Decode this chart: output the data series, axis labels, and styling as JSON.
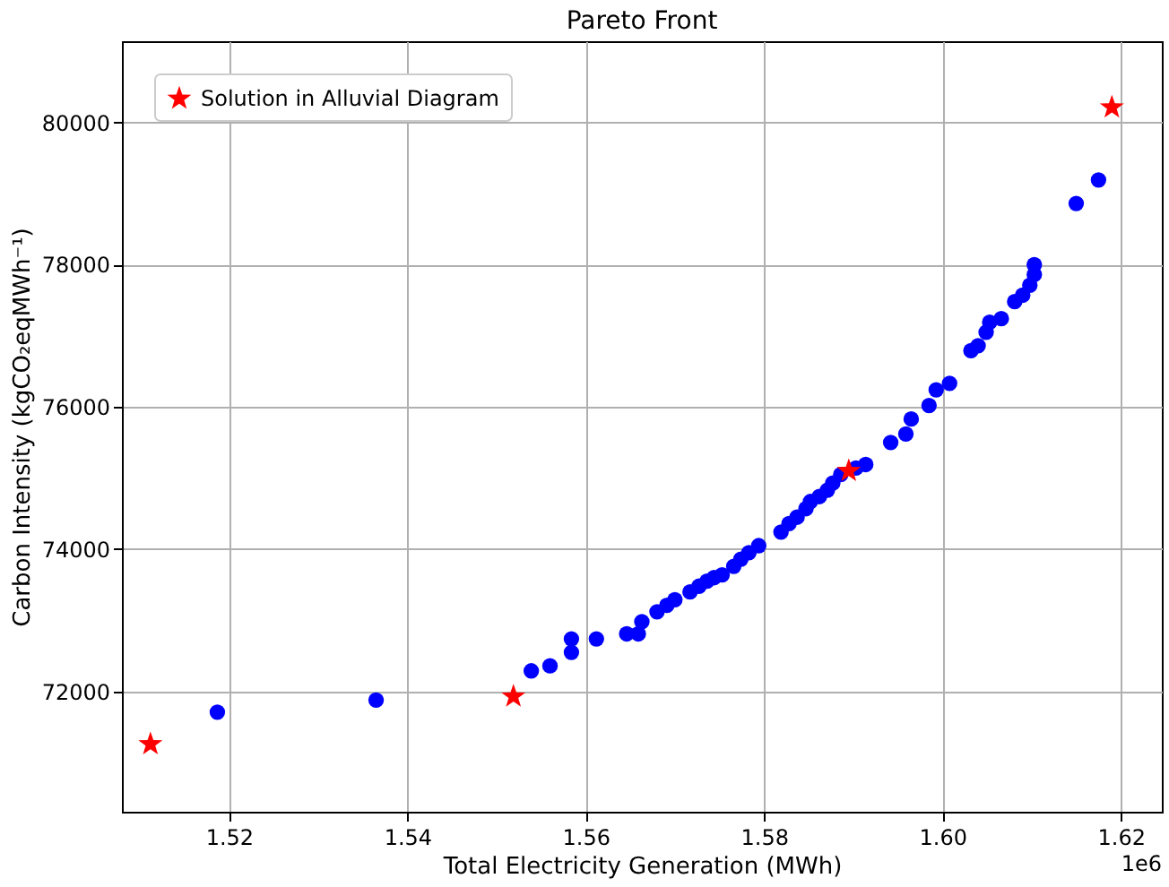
{
  "chart_data": {
    "type": "scatter",
    "title": "Pareto Front",
    "xlabel": "Total Electricity Generation (MWh)",
    "ylabel": "Carbon Intensity (kgCO₂eqMWh⁻¹)",
    "xlim": [
      1.508,
      1.6246
    ],
    "ylim": [
      70310,
      81140
    ],
    "xticks": [
      1.52,
      1.54,
      1.56,
      1.58,
      {
        "value": 1.6,
        "label": "1.60"
      },
      1.62
    ],
    "yticks": [
      72000,
      74000,
      76000,
      78000,
      80000
    ],
    "grid": true,
    "legend": "top left",
    "annotations": [
      "1e6"
    ],
    "series": [
      {
        "color": "#0000ff",
        "marker": "circle",
        "x": [
          1.5187,
          1.5365,
          1.5539,
          1.556,
          1.5584,
          1.5584,
          1.5612,
          1.5646,
          1.5659,
          1.5663,
          1.568,
          1.5691,
          1.57,
          1.5717,
          1.5727,
          1.5736,
          1.5744,
          1.5753,
          1.5766,
          1.5774,
          1.5783,
          1.5794,
          1.5819,
          1.5828,
          1.5837,
          1.5847,
          1.5852,
          1.5862,
          1.5871,
          1.5877,
          1.5886,
          1.5903,
          1.5914,
          1.5942,
          1.5959,
          1.5965,
          1.5985,
          1.5993,
          1.6008,
          1.6032,
          1.604,
          1.6049,
          1.6053,
          1.6066,
          1.6081,
          1.609,
          1.6098,
          1.6103,
          1.6103,
          1.615,
          1.6175
        ],
        "values": [
          71710,
          71880,
          72290,
          72360,
          72740,
          72550,
          72740,
          72810,
          72810,
          72980,
          73120,
          73210,
          73290,
          73400,
          73480,
          73550,
          73600,
          73640,
          73760,
          73860,
          73950,
          74050,
          74240,
          74360,
          74450,
          74570,
          74670,
          74740,
          74830,
          74930,
          75050,
          75140,
          75190,
          75500,
          75620,
          75830,
          76020,
          76240,
          76330,
          76790,
          76860,
          77050,
          77190,
          77240,
          77480,
          77570,
          77710,
          77860,
          78000,
          78860,
          79190
        ]
      },
      {
        "name": "Solution in Alluvial Diagram",
        "color": "#ff0000",
        "marker": "star",
        "x": [
          1.5112,
          1.5519,
          1.5895,
          1.619
        ],
        "values": [
          71260,
          71930,
          75100,
          80210
        ]
      }
    ]
  }
}
